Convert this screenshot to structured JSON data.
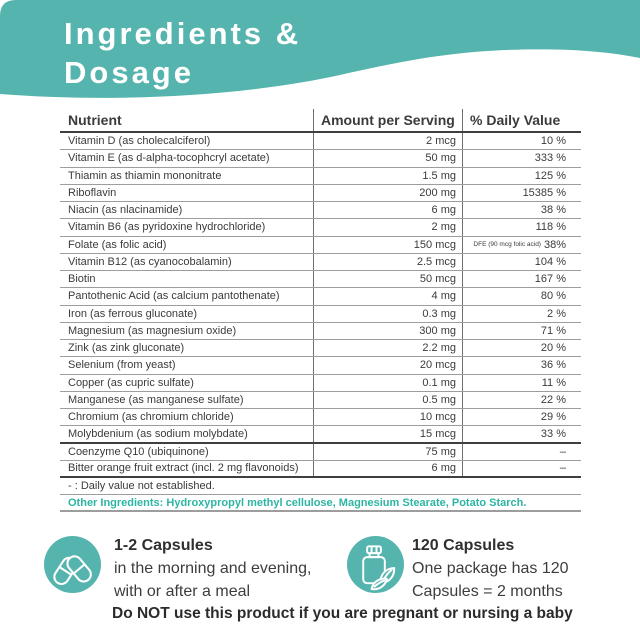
{
  "header": {
    "title_line1": "Ingredients &",
    "title_line2": "Dosage"
  },
  "table": {
    "columns": [
      "Nutrient",
      "Amount per Serving",
      "% Daily Value"
    ],
    "rows": [
      {
        "nutrient": "Vitamin D (as cholecalciferol)",
        "amount": "2 mcg",
        "dv": "10 %"
      },
      {
        "nutrient": "Vitamin E (as d-alpha-tocophcryl acetate)",
        "amount": "50 mg",
        "dv": "333 %"
      },
      {
        "nutrient": "Thiamin as thiamin mononitrate",
        "amount": "1.5 mg",
        "dv": "125 %"
      },
      {
        "nutrient": "Riboflavin",
        "amount": "200 mg",
        "dv": "15385 %"
      },
      {
        "nutrient": "Niacin (as nlacinamide)",
        "amount": "6 mg",
        "dv": "38 %"
      },
      {
        "nutrient": "Vitamin B6 (as pyridoxine hydrochloride)",
        "amount": "2 mg",
        "dv": "118 %"
      },
      {
        "nutrient": "Folate (as folic acid)",
        "amount": "150 mcg",
        "dv_prefix": "DFE (90 mcg folic acid)",
        "dv": "38%"
      },
      {
        "nutrient": "Vitamin B12 (as cyanocobalamin)",
        "amount": "2.5 mcg",
        "dv": "104 %"
      },
      {
        "nutrient": "Biotin",
        "amount": "50 mcg",
        "dv": "167 %"
      },
      {
        "nutrient": "Pantothenic Acid (as calcium pantothenate)",
        "amount": "4 mg",
        "dv": "80 %"
      },
      {
        "nutrient": "Iron (as ferrous gluconate)",
        "amount": "0.3 mg",
        "dv": "2 %"
      },
      {
        "nutrient": "Magnesium (as magnesium oxide)",
        "amount": "300 mg",
        "dv": "71 %"
      },
      {
        "nutrient": "Zink (as zink gluconate)",
        "amount": "2.2 mg",
        "dv": "20 %"
      },
      {
        "nutrient": "Selenium (from yeast)",
        "amount": "20 mcg",
        "dv": "36 %"
      },
      {
        "nutrient": "Copper (as cupric sulfate)",
        "amount": "0.1 mg",
        "dv": "11 %"
      },
      {
        "nutrient": "Manganese (as manganese sulfate)",
        "amount": "0.5 mg",
        "dv": "22 %"
      },
      {
        "nutrient": "Chromium (as chromium chloride)",
        "amount": "10 mcg",
        "dv": "29 %"
      },
      {
        "nutrient": "Molybdenium (as sodium molybdate)",
        "amount": "15 mcg",
        "dv": "33 %",
        "section_end": true
      },
      {
        "nutrient": "Coenzyme Q10 (ubiquinone)",
        "amount": "75 mg",
        "dv": "–"
      },
      {
        "nutrient": "Bitter orange fruit extract (incl. 2 mg flavonoids)",
        "amount": "6 mg",
        "dv": "–"
      }
    ]
  },
  "footnotes": {
    "dash_note": "- : Daily value not established.",
    "other_ingredients": "Other Ingredients: Hydroxypropyl methyl cellulose, Magnesium Stearate, Potato Starch."
  },
  "dosage": {
    "icon": "capsules-icon",
    "title": "1-2 Capsules",
    "line1": "in the morning and evening,",
    "line2": "with or after a meal"
  },
  "package": {
    "icon": "bottle-leaves-icon",
    "title": "120 Capsules",
    "line1": "One package has 120",
    "line2": "Capsules = 2 months"
  },
  "warning": "Do NOT use this product if you are pregnant or nursing a baby",
  "colors": {
    "banner_teal": "#55b5ae",
    "accent_text_teal": "#2db5a3",
    "body_text": "#3b3b3b",
    "row_line": "#9d9d9d",
    "dark_line": "#3f3f3f"
  }
}
